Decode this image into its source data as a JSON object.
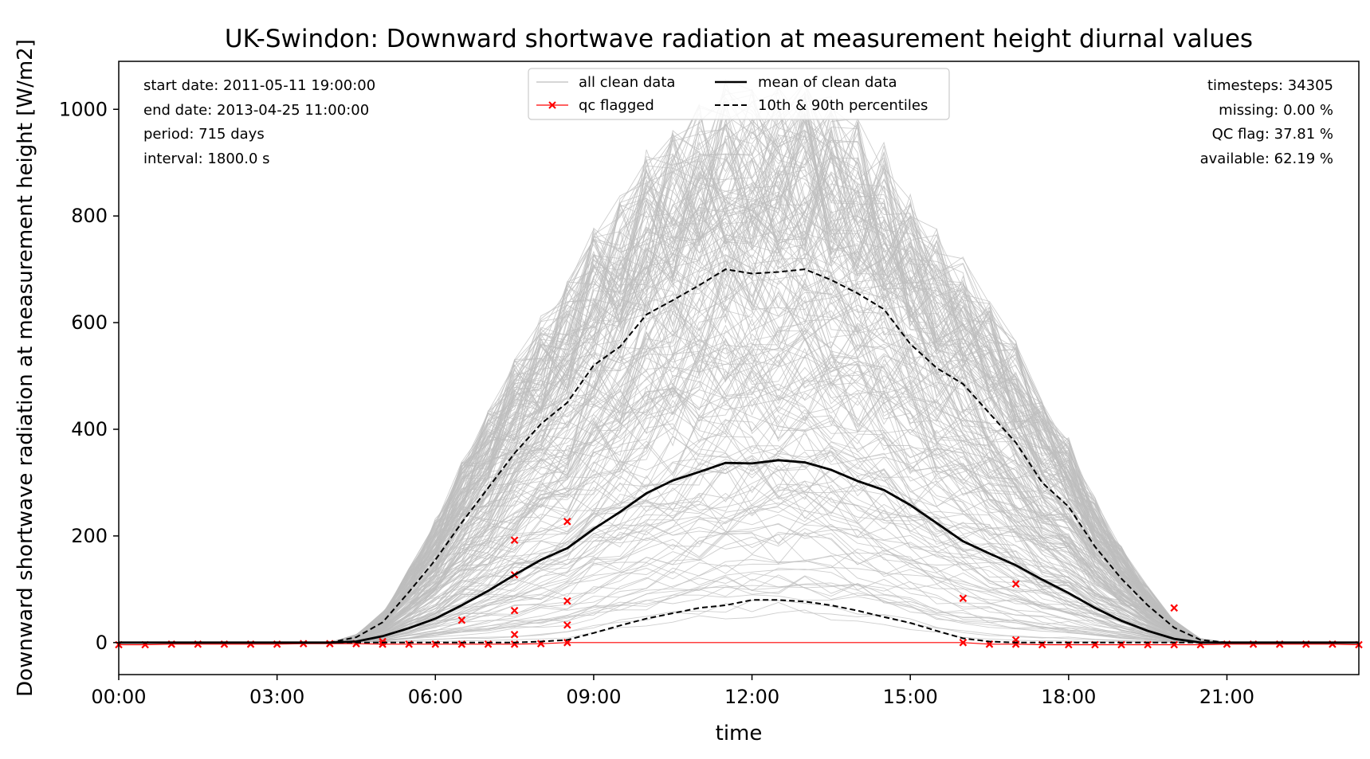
{
  "chart_data": {
    "type": "line",
    "title": "UK-Swindon: Downward shortwave radiation at measurement height diurnal values",
    "xlabel": "time",
    "ylabel": "Downward shortwave radiation at measurement height [W/m2]",
    "xlim": [
      0,
      23.5
    ],
    "ylim": [
      -60,
      1090
    ],
    "x_ticks": [
      {
        "label": "00:00",
        "value": 0
      },
      {
        "label": "03:00",
        "value": 3
      },
      {
        "label": "06:00",
        "value": 6
      },
      {
        "label": "09:00",
        "value": 9
      },
      {
        "label": "12:00",
        "value": 12
      },
      {
        "label": "15:00",
        "value": 15
      },
      {
        "label": "18:00",
        "value": 18
      },
      {
        "label": "21:00",
        "value": 21
      }
    ],
    "y_ticks": [
      {
        "label": "0",
        "value": 0
      },
      {
        "label": "200",
        "value": 200
      },
      {
        "label": "400",
        "value": 400
      },
      {
        "label": "600",
        "value": 600
      },
      {
        "label": "800",
        "value": 800
      },
      {
        "label": "1000",
        "value": 1000
      }
    ],
    "colors": {
      "clean": "#bdbdbd",
      "flagged": "#ff0000",
      "mean": "#000000",
      "percentile": "#000000"
    },
    "legend_placement": "top-center",
    "legend": [
      "all clean data",
      "qc flagged",
      "mean of clean data",
      "10th & 90th percentiles"
    ],
    "info_left": [
      "start date: 2011-05-11 19:00:00",
      "end date: 2013-04-25 11:00:00",
      "period: 715 days",
      "interval: 1800.0 s"
    ],
    "info_right": [
      "timesteps: 34305",
      "missing: 0.00 %",
      "QC flag: 37.81 %",
      "available: 62.19 %"
    ],
    "x": [
      0,
      0.5,
      1,
      1.5,
      2,
      2.5,
      3,
      3.5,
      4,
      4.5,
      5,
      5.5,
      6,
      6.5,
      7,
      7.5,
      8,
      8.5,
      9,
      9.5,
      10,
      10.5,
      11,
      11.5,
      12,
      12.5,
      13,
      13.5,
      14,
      14.5,
      15,
      15.5,
      16,
      16.5,
      17,
      17.5,
      18,
      18.5,
      19,
      19.5,
      20,
      20.5,
      21,
      21.5,
      22,
      22.5,
      23,
      23.5
    ],
    "series": [
      {
        "name": "mean of clean data",
        "style": "solid",
        "values": [
          0,
          0,
          0,
          0,
          0,
          0,
          0,
          0,
          0,
          2,
          12,
          27,
          45,
          70,
          97,
          127,
          155,
          177,
          213,
          245,
          280,
          304,
          320,
          337,
          336,
          342,
          338,
          324,
          303,
          286,
          258,
          224,
          190,
          167,
          145,
          118,
          93,
          65,
          41,
          22,
          7,
          0,
          0,
          0,
          0,
          0,
          0,
          0
        ]
      },
      {
        "name": "90th percentile",
        "style": "dashed",
        "values": [
          0,
          0,
          0,
          0,
          0,
          0,
          0,
          0,
          0,
          10,
          38,
          95,
          155,
          225,
          290,
          355,
          410,
          450,
          520,
          555,
          615,
          642,
          670,
          700,
          692,
          695,
          700,
          680,
          655,
          625,
          560,
          515,
          485,
          430,
          375,
          300,
          255,
          180,
          120,
          70,
          28,
          5,
          0,
          0,
          0,
          0,
          0,
          0
        ]
      },
      {
        "name": "10th percentile",
        "style": "dashed",
        "values": [
          0,
          0,
          0,
          0,
          0,
          0,
          0,
          0,
          0,
          0,
          0,
          0,
          0,
          0,
          0,
          0,
          2,
          5,
          18,
          32,
          45,
          55,
          65,
          70,
          80,
          80,
          77,
          70,
          60,
          48,
          37,
          22,
          8,
          2,
          0,
          0,
          0,
          0,
          0,
          0,
          0,
          0,
          0,
          0,
          0,
          0,
          0,
          0
        ]
      }
    ],
    "qc_flagged": {
      "name": "qc flagged",
      "points": [
        [
          0,
          -4
        ],
        [
          0.5,
          -4
        ],
        [
          1,
          -3
        ],
        [
          1.5,
          -3
        ],
        [
          2,
          -3
        ],
        [
          2.5,
          -3
        ],
        [
          3,
          -3
        ],
        [
          3.5,
          -2
        ],
        [
          4,
          -2
        ],
        [
          4.5,
          -2
        ],
        [
          5,
          -3
        ],
        [
          5,
          2
        ],
        [
          5.5,
          -3
        ],
        [
          6,
          -3
        ],
        [
          6.5,
          -3
        ],
        [
          6.5,
          42
        ],
        [
          7,
          -3
        ],
        [
          7.5,
          -3
        ],
        [
          7.5,
          15
        ],
        [
          7.5,
          60
        ],
        [
          7.5,
          127
        ],
        [
          7.5,
          192
        ],
        [
          8,
          -2
        ],
        [
          8.5,
          0
        ],
        [
          8.5,
          33
        ],
        [
          8.5,
          78
        ],
        [
          8.5,
          227
        ],
        [
          16,
          0
        ],
        [
          16,
          83
        ],
        [
          16.5,
          -3
        ],
        [
          17,
          -3
        ],
        [
          17,
          5
        ],
        [
          17,
          110
        ],
        [
          17.5,
          -4
        ],
        [
          18,
          -4
        ],
        [
          18.5,
          -4
        ],
        [
          19,
          -4
        ],
        [
          19.5,
          -4
        ],
        [
          20,
          -4
        ],
        [
          20,
          65
        ],
        [
          20.5,
          -4
        ],
        [
          21,
          -3
        ],
        [
          21.5,
          -3
        ],
        [
          22,
          -3
        ],
        [
          22.5,
          -3
        ],
        [
          23,
          -3
        ],
        [
          23.5,
          -4
        ]
      ]
    }
  }
}
